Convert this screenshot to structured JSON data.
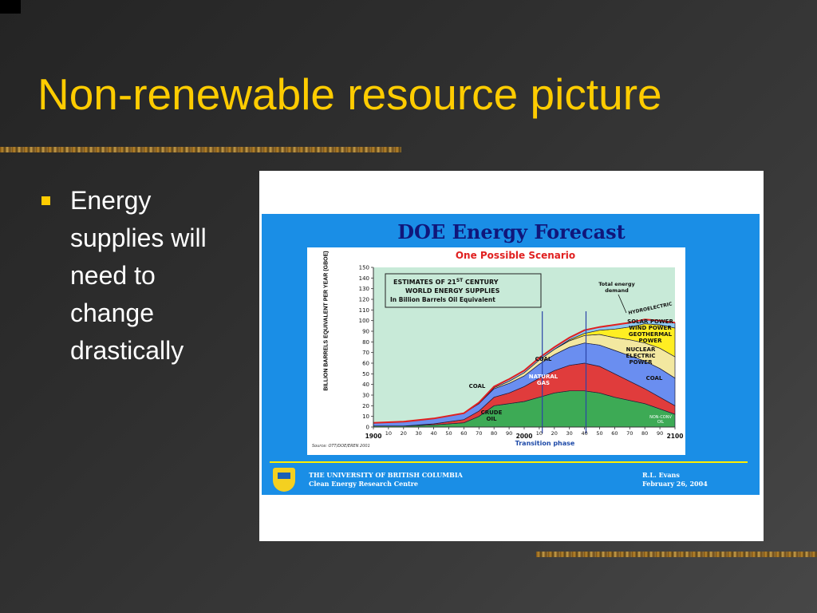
{
  "slide": {
    "title": "Non-renewable resource picture",
    "bullets": [
      "Energy supplies will need to change drastically"
    ]
  },
  "figure": {
    "title": "DOE Energy Forecast",
    "footer": {
      "left_line1": "THE UNIVERSITY OF BRITISH COLUMBIA",
      "left_line2": "Clean Energy Research Centre",
      "right_line1": "R.L. Evans",
      "right_line2": "February 26, 2004"
    },
    "colors": {
      "crude_oil": "#3daa55",
      "natural_gas": "#e03c3c",
      "coal": "#6a8ef0",
      "nuclear": "#f3e8a0",
      "renewables": "#ffee22",
      "hydro": "#8ec8f0",
      "demand_line": "#e02020",
      "plot_bg": "#c8ead8"
    }
  },
  "chart_data": {
    "type": "area",
    "title": "One Possible Scenario",
    "ylabel": "BILLION BARRELS EQUIVALENT PER YEAR (GBOE)",
    "ylim": [
      0,
      150
    ],
    "yticks": [
      0,
      10,
      20,
      30,
      40,
      50,
      60,
      70,
      80,
      90,
      100,
      110,
      120,
      130,
      140,
      150
    ],
    "xlim": [
      1900,
      2100
    ],
    "x": [
      1900,
      1920,
      1940,
      1960,
      1970,
      1980,
      1990,
      2000,
      2010,
      2020,
      2030,
      2040,
      2050,
      2060,
      2070,
      2080,
      2090,
      2100
    ],
    "xtick_values": [
      1900,
      1910,
      1920,
      1930,
      1940,
      1950,
      1960,
      1970,
      1980,
      1990,
      2000,
      2010,
      2020,
      2030,
      2040,
      2050,
      2060,
      2070,
      2080,
      2090,
      2100
    ],
    "xtick_labels": [
      "1900",
      "10",
      "20",
      "30",
      "40",
      "50",
      "60",
      "70",
      "80",
      "90",
      "2000",
      "10",
      "20",
      "30",
      "40",
      "50",
      "60",
      "70",
      "80",
      "90",
      "2100"
    ],
    "series": [
      {
        "name": "CRUDE OIL",
        "values": [
          1,
          1,
          2,
          4,
          10,
          20,
          22,
          24,
          28,
          32,
          34,
          34,
          32,
          28,
          25,
          22,
          17,
          12
        ]
      },
      {
        "name": "NATURAL GAS",
        "values": [
          0,
          0,
          1,
          3,
          5,
          8,
          10,
          14,
          18,
          21,
          24,
          26,
          25,
          22,
          18,
          14,
          11,
          8
        ]
      },
      {
        "name": "COAL",
        "values": [
          3,
          4,
          5,
          6,
          7,
          8,
          9,
          10,
          13,
          15,
          17,
          19,
          20,
          22,
          24,
          26,
          27,
          26
        ]
      },
      {
        "name": "NUCLEAR ELECTRIC POWER",
        "values": [
          0,
          0,
          0,
          0,
          0,
          1,
          2,
          3,
          4,
          5,
          6,
          7,
          10,
          12,
          15,
          17,
          19,
          20
        ]
      },
      {
        "name": "SOLAR POWER WIND POWER GEOTHERMAL POWER",
        "values": [
          0,
          0,
          0,
          0,
          0,
          0,
          0,
          0,
          0,
          0,
          1,
          2,
          4,
          8,
          12,
          18,
          22,
          27
        ]
      },
      {
        "name": "HYDROELECTRIC",
        "values": [
          0,
          0,
          0,
          0,
          1,
          1,
          2,
          2,
          2,
          2,
          2,
          3,
          3,
          4,
          4,
          4,
          4,
          5
        ]
      }
    ],
    "demand": {
      "name": "Total energy demand",
      "values": [
        4,
        5,
        8,
        13,
        23,
        38,
        45,
        53,
        65,
        75,
        84,
        91,
        94,
        96,
        98,
        101,
        100,
        98
      ]
    },
    "transition_lines": [
      2012,
      2041
    ],
    "annotations": {
      "box_line1": "ESTIMATES OF 21",
      "box_super": "ST",
      "box_line1b": " CENTURY",
      "box_line2": "WORLD ENERGY SUPPLIES",
      "box_line3": "In Billion Barrels Oil Equivalent",
      "demand_label1": "Total energy",
      "demand_label2": "demand",
      "hydro_label": "HYDROELECTRIC",
      "solar_label": "SOLAR POWER",
      "wind_label": "WIND POWER",
      "geo_label1": "GEOTHERMAL",
      "geo_label2": "POWER",
      "nuclear_label1": "NUCLEAR",
      "nuclear_label2": "ELECTRIC",
      "nuclear_label3": "POWER",
      "coal_right": "COAL",
      "coal_mid": "COAL",
      "coal_left": "COAL",
      "gas_label1": "NATURAL",
      "gas_label2": "GAS",
      "oil_label1": "CRUDE",
      "oil_label2": "OIL",
      "nonconv_label1": "NON-CONV",
      "nonconv_label2": "OIL",
      "transition_label": "Transition phase",
      "source": "Source: OTT/DOE/EREN 2001"
    }
  }
}
